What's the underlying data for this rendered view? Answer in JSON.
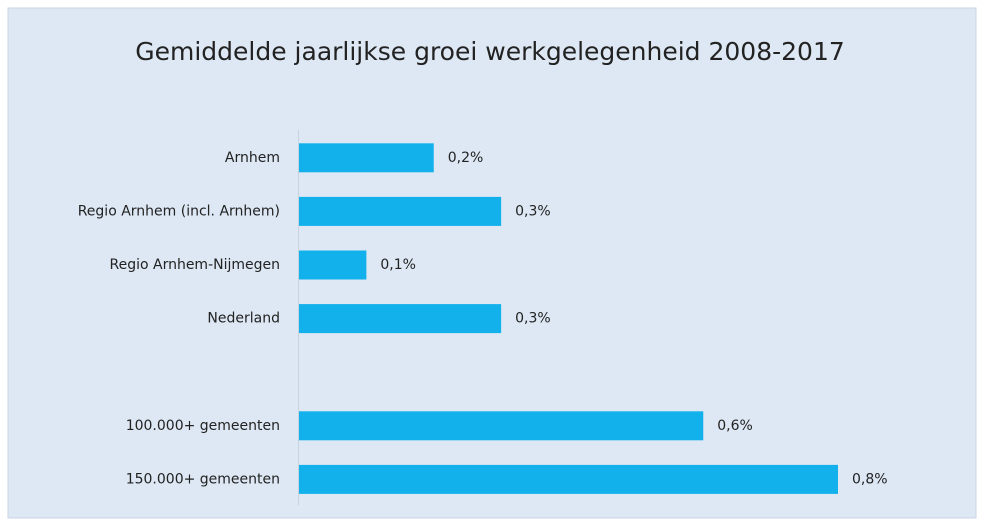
{
  "chart_data": {
    "type": "hbar",
    "title": "Gemiddelde jaarlijkse groei werkgelegenheid 2008-2017",
    "categories": [
      "Arnhem",
      "Regio Arnhem (incl. Arnhem)",
      "Regio Arnhem-Nijmegen",
      "Nederland",
      null,
      "100.000+ gemeenten",
      "150.000+ gemeenten"
    ],
    "values": [
      0.2,
      0.3,
      0.1,
      0.3,
      null,
      0.6,
      0.8
    ],
    "value_labels": [
      "0,2%",
      "0,3%",
      "0,1%",
      "0,3%",
      null,
      "0,6%",
      "0,8%"
    ],
    "color": "#13b1eb"
  }
}
